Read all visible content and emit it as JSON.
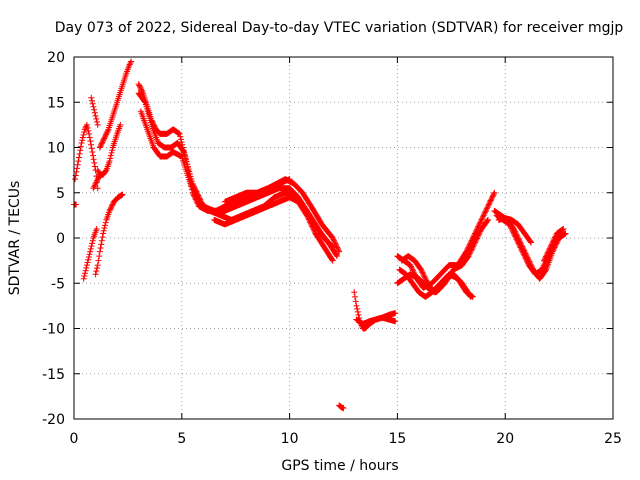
{
  "chart_data": {
    "type": "scatter",
    "title": "Day 073 of 2022, Sidereal Day-to-day VTEC variation (SDTVAR) for receiver mgjp",
    "xlabel": "GPS time / hours",
    "ylabel": "SDTVAR / TECUs",
    "xlim": [
      0,
      25
    ],
    "ylim": [
      -20,
      20
    ],
    "xticks": [
      0,
      5,
      10,
      15,
      20,
      25
    ],
    "yticks": [
      -20,
      -15,
      -10,
      -5,
      0,
      5,
      10,
      15,
      20
    ],
    "grid": true,
    "marker": "+",
    "color": "#ff0000",
    "series": [
      {
        "name": "t1",
        "x": [
          0,
          0.1
        ],
        "y": [
          3.7,
          3.7
        ]
      },
      {
        "name": "t2",
        "x": [
          0.05,
          0.2,
          0.35,
          0.5,
          0.6,
          0.7,
          0.85,
          1.0,
          1.1
        ],
        "y": [
          6.5,
          8.5,
          10.5,
          12.0,
          12.5,
          11.5,
          9.5,
          7.5,
          5.5
        ]
      },
      {
        "name": "t3",
        "x": [
          0.45,
          0.6,
          0.75,
          0.9,
          1.05
        ],
        "y": [
          -4.5,
          -3.0,
          -1.5,
          0.0,
          1.0
        ]
      },
      {
        "name": "t4",
        "x": [
          0.8,
          0.9,
          1.0,
          1.1
        ],
        "y": [
          15.5,
          14.5,
          13.5,
          12.5
        ]
      },
      {
        "name": "t5",
        "x": [
          1.2,
          1.4,
          1.6,
          1.8,
          2.0,
          2.2,
          2.4,
          2.55,
          2.65
        ],
        "y": [
          10.0,
          11.0,
          12.0,
          13.5,
          15.0,
          16.5,
          18.0,
          19.0,
          19.5
        ]
      },
      {
        "name": "t6",
        "x": [
          1.1,
          1.2,
          1.35,
          1.5,
          1.65,
          1.8,
          2.0,
          2.15
        ],
        "y": [
          7.5,
          7.0,
          7.0,
          7.5,
          8.5,
          10.0,
          11.5,
          12.5
        ]
      },
      {
        "name": "t7",
        "x": [
          1.0,
          1.1,
          1.2,
          1.35,
          1.5,
          1.65,
          1.85,
          2.05,
          2.25
        ],
        "y": [
          -4.0,
          -3.0,
          -1.5,
          0.5,
          2.0,
          3.0,
          4.0,
          4.5,
          4.8
        ]
      },
      {
        "name": "t8",
        "x": [
          0.9,
          1.0,
          1.1,
          1.25
        ],
        "y": [
          5.5,
          6.0,
          6.5,
          7.0
        ]
      },
      {
        "name": "t9",
        "x": [
          3.0,
          3.2,
          3.4,
          3.6,
          3.8,
          4.0,
          4.3,
          4.6,
          4.9,
          5.2,
          5.5,
          5.8,
          6.2,
          6.6,
          7.0,
          7.5,
          8.0,
          8.5,
          9.0,
          9.4,
          9.8,
          10.2,
          10.6,
          11.0,
          11.5,
          12.0,
          12.3
        ],
        "y": [
          17.0,
          16.0,
          14.5,
          13.0,
          12.0,
          11.5,
          11.5,
          12.0,
          11.5,
          8.5,
          5.0,
          3.5,
          3.0,
          3.0,
          3.5,
          4.0,
          4.5,
          5.0,
          5.5,
          6.0,
          6.5,
          6.0,
          5.0,
          3.5,
          1.5,
          0.0,
          -1.5
        ]
      },
      {
        "name": "t10",
        "x": [
          3.0,
          3.3,
          3.6,
          3.9,
          4.2,
          4.5,
          4.8,
          5.1,
          5.5,
          6.0,
          6.5,
          7.0,
          7.5,
          8.0,
          8.5,
          9.0,
          9.5,
          10.0,
          10.4,
          10.8,
          11.2,
          11.6,
          12.0
        ],
        "y": [
          16.0,
          15.0,
          12.5,
          10.5,
          10.0,
          10.0,
          10.5,
          9.5,
          6.0,
          3.5,
          3.0,
          3.0,
          3.5,
          4.0,
          4.5,
          5.0,
          5.5,
          5.5,
          4.5,
          3.0,
          1.5,
          0.0,
          -1.0
        ]
      },
      {
        "name": "t11",
        "x": [
          3.1,
          3.4,
          3.7,
          4.0,
          4.3,
          4.6,
          5.0,
          5.4,
          5.8,
          6.3,
          6.8,
          7.3,
          7.8,
          8.3,
          8.8,
          9.3,
          9.8,
          10.3,
          10.8,
          11.3,
          11.8,
          12.2
        ],
        "y": [
          14.0,
          12.0,
          10.0,
          9.0,
          9.0,
          9.5,
          9.0,
          6.0,
          4.0,
          3.0,
          2.5,
          2.0,
          2.5,
          3.0,
          3.5,
          4.5,
          5.0,
          4.5,
          3.0,
          1.0,
          -0.5,
          -2.0
        ]
      },
      {
        "name": "t12",
        "x": [
          6.5,
          7.0,
          7.5,
          8.0,
          8.5,
          9.0,
          9.5,
          10.0,
          10.4,
          10.8,
          11.2,
          11.6,
          12.0
        ],
        "y": [
          2.0,
          1.5,
          2.0,
          2.5,
          3.0,
          3.5,
          4.0,
          4.5,
          4.0,
          2.5,
          0.5,
          -1.0,
          -2.5
        ]
      },
      {
        "name": "t13",
        "x": [
          7.0,
          7.5,
          8.0,
          8.5,
          9.0,
          9.5,
          10.0
        ],
        "y": [
          4.0,
          4.5,
          5.0,
          5.0,
          5.5,
          6.0,
          6.5
        ]
      },
      {
        "name": "t14",
        "x": [
          12.3,
          12.4,
          12.5
        ],
        "y": [
          -18.5,
          -18.7,
          -18.8
        ]
      },
      {
        "name": "t15",
        "x": [
          13.0,
          13.1,
          13.2,
          13.3,
          13.4,
          13.5,
          13.7,
          14.0,
          14.3,
          14.6,
          14.9
        ],
        "y": [
          -6.0,
          -7.5,
          -8.5,
          -9.5,
          -10.0,
          -10.0,
          -9.5,
          -9.0,
          -8.8,
          -8.5,
          -8.3
        ]
      },
      {
        "name": "t16",
        "x": [
          13.1,
          13.4,
          13.7,
          14.0,
          14.3,
          14.6,
          14.9
        ],
        "y": [
          -9.0,
          -9.5,
          -9.2,
          -9.0,
          -8.8,
          -9.0,
          -9.2
        ]
      },
      {
        "name": "t17",
        "x": [
          15.0,
          15.3,
          15.6,
          15.9,
          16.2,
          16.6,
          17.0,
          17.4,
          17.8,
          18.2,
          18.6,
          19.0,
          19.3,
          19.5
        ],
        "y": [
          -2.0,
          -2.5,
          -3.0,
          -4.5,
          -5.5,
          -5.0,
          -4.0,
          -3.0,
          -3.0,
          -1.5,
          0.5,
          2.5,
          4.0,
          5.0
        ]
      },
      {
        "name": "t18",
        "x": [
          15.0,
          15.3,
          15.6,
          16.0,
          16.4,
          16.8,
          17.2,
          17.6,
          18.0,
          18.3,
          18.6,
          18.9,
          19.2
        ],
        "y": [
          -5.0,
          -4.5,
          -4.0,
          -4.5,
          -5.5,
          -6.0,
          -5.0,
          -3.5,
          -3.0,
          -2.0,
          -0.5,
          1.0,
          2.0
        ]
      },
      {
        "name": "t19",
        "x": [
          15.1,
          15.4,
          15.7,
          16.0,
          16.3,
          16.6,
          17.0,
          17.4,
          17.8,
          18.2,
          18.5
        ],
        "y": [
          -3.5,
          -4.0,
          -5.0,
          -6.0,
          -6.5,
          -6.0,
          -5.0,
          -4.0,
          -4.5,
          -6.0,
          -6.5
        ]
      },
      {
        "name": "t20",
        "x": [
          15.2,
          15.5,
          15.8,
          16.1,
          16.4,
          16.7,
          17.0,
          17.3,
          17.6,
          18.0,
          18.4
        ],
        "y": [
          -2.5,
          -2.0,
          -2.5,
          -3.5,
          -5.0,
          -6.0,
          -5.5,
          -4.5,
          -4.0,
          -5.0,
          -6.5
        ]
      },
      {
        "name": "t21",
        "x": [
          19.5,
          19.8,
          20.1,
          20.4,
          20.7,
          21.0,
          21.3,
          21.6,
          21.9,
          22.2,
          22.5,
          22.8
        ],
        "y": [
          3.0,
          2.5,
          2.0,
          1.0,
          -0.5,
          -2.0,
          -3.5,
          -4.5,
          -3.5,
          -1.5,
          0.0,
          0.5
        ]
      },
      {
        "name": "t22",
        "x": [
          19.6,
          19.9,
          20.2,
          20.5,
          20.8,
          21.1,
          21.4,
          21.7,
          22.0,
          22.3,
          22.6
        ],
        "y": [
          2.5,
          2.0,
          1.5,
          0.0,
          -1.5,
          -3.0,
          -4.0,
          -3.5,
          -2.0,
          -0.5,
          0.5
        ]
      },
      {
        "name": "t23",
        "x": [
          19.7,
          20.0,
          20.3,
          20.6,
          20.9,
          21.2
        ],
        "y": [
          2.0,
          2.2,
          2.0,
          1.5,
          0.5,
          -0.5
        ]
      },
      {
        "name": "t24",
        "x": [
          21.8,
          22.1,
          22.4,
          22.7
        ],
        "y": [
          -2.5,
          -1.0,
          0.5,
          1.0
        ]
      }
    ]
  }
}
